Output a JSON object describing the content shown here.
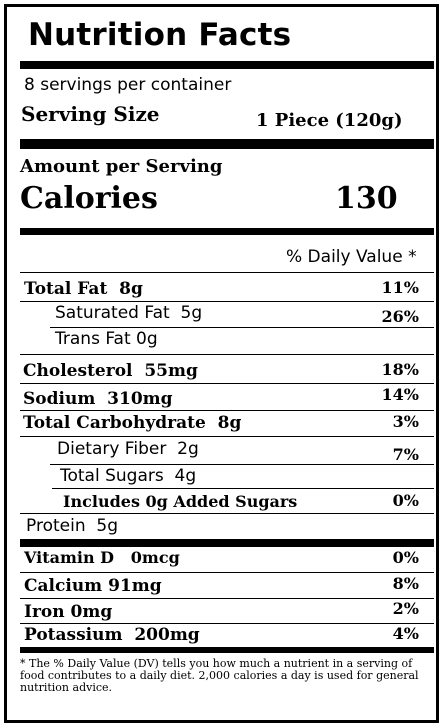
{
  "title": "Nutrition Facts",
  "servings_per_container": "8 servings per container",
  "serving_size": {
    "label": "Serving Size",
    "value": "1 Piece (120g)"
  },
  "amount_per_serving": "Amount per Serving",
  "calories": {
    "label": "Calories",
    "value": "130"
  },
  "daily_value_header": "% Daily Value *",
  "nutrients": [
    {
      "label": "Total Fat",
      "amount": "8g",
      "dv": "11%"
    },
    {
      "label": "Saturated Fat",
      "amount": "5g",
      "dv": "26%"
    },
    {
      "label": "Trans Fat",
      "amount": "0g",
      "dv": ""
    },
    {
      "label": "Cholesterol",
      "amount": "55mg",
      "dv": "18%"
    },
    {
      "label": "Sodium",
      "amount": "310mg",
      "dv": "14%"
    },
    {
      "label": "Total Carbohydrate",
      "amount": "8g",
      "dv": "3%"
    },
    {
      "label": "Dietary Fiber",
      "amount": "2g",
      "dv": "7%"
    },
    {
      "label": "Total Sugars",
      "amount": "4g",
      "dv": ""
    },
    {
      "label": "Includes 0g Added Sugars",
      "amount": "",
      "dv": "0%"
    },
    {
      "label": "Protein",
      "amount": "5g",
      "dv": ""
    }
  ],
  "vitamins": [
    {
      "label": "Vitamin D",
      "amount": "0mcg",
      "dv": "0%"
    },
    {
      "label": "Calcium",
      "amount": "91mg",
      "dv": "8%"
    },
    {
      "label": "Iron",
      "amount": "0mg",
      "dv": "2%"
    },
    {
      "label": "Potassium",
      "amount": "200mg",
      "dv": "4%"
    }
  ],
  "footnote": "* The % Daily Value (DV) tells you how much a nutrient in a serving of food contributes to a daily diet. 2,000 calories a day is used for general nutrition advice."
}
